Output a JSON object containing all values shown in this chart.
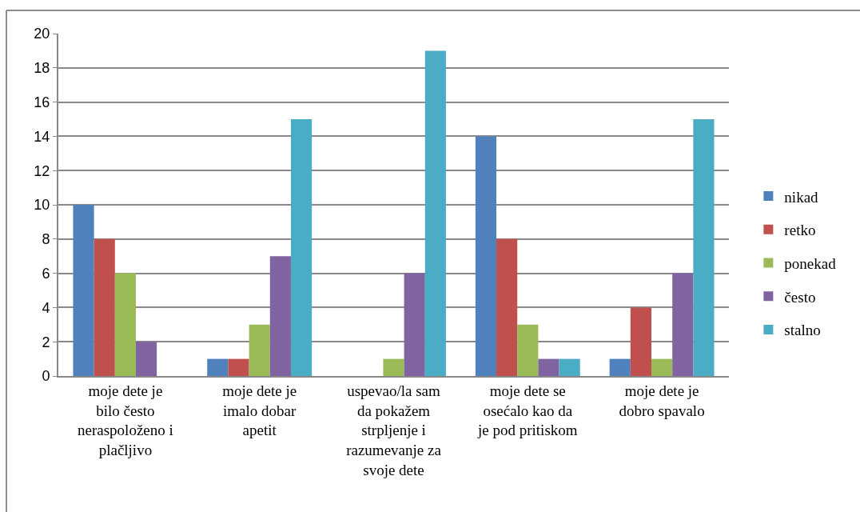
{
  "chart_data": {
    "type": "bar",
    "categories": [
      "moje dete je bilo često neraspoloženo i plačljivo",
      "moje dete je imalo dobar apetit",
      "uspevao/la sam da pokažem strpljenje i razumevanje za svoje dete",
      "moje dete se osećalo kao da je pod pritiskom",
      "moje dete je dobro spavalo"
    ],
    "series": [
      {
        "name": "nikad",
        "color": "#4f81bd",
        "values": [
          10,
          1,
          0,
          14,
          1
        ]
      },
      {
        "name": "retko",
        "color": "#c0504d",
        "values": [
          8,
          1,
          0,
          8,
          4
        ]
      },
      {
        "name": "ponekad",
        "color": "#9bbb59",
        "values": [
          6,
          3,
          1,
          3,
          1
        ]
      },
      {
        "name": "često",
        "color": "#8064a2",
        "values": [
          2,
          7,
          6,
          1,
          6
        ]
      },
      {
        "name": "stalno",
        "color": "#4bacc6",
        "values": [
          0,
          15,
          19,
          1,
          15
        ]
      }
    ],
    "ylim": [
      0,
      20
    ],
    "yticks": [
      0,
      2,
      4,
      6,
      8,
      10,
      12,
      14,
      16,
      18,
      20
    ],
    "grid": "y",
    "legend": "right"
  }
}
